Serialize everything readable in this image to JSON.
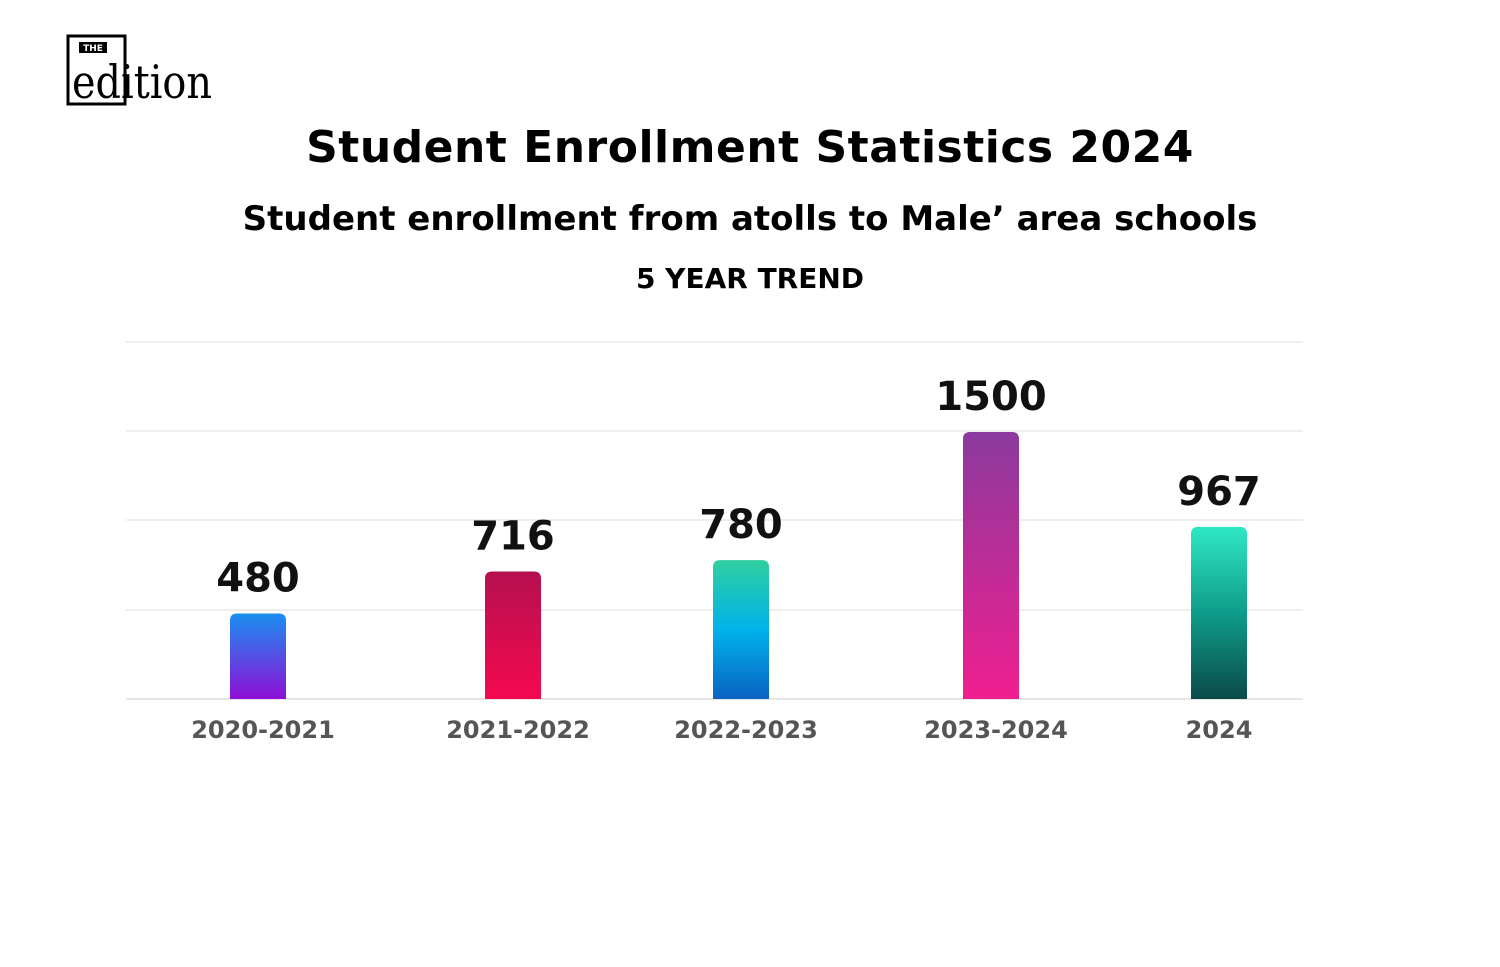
{
  "logo": {
    "small_text": "THE",
    "main_text": "edition"
  },
  "header": {
    "title": "Student Enrollment Statistics 2024",
    "subtitle": "Student enrollment from atolls to Male’ area schools",
    "trend_label": "5 YEAR TREND"
  },
  "chart_data": {
    "type": "bar",
    "categories": [
      "2020-2021",
      "2021-2022",
      "2022-2023",
      "2023-2024",
      "2024"
    ],
    "values": [
      480,
      716,
      780,
      1500,
      967
    ],
    "title": "Student Enrollment Statistics 2024",
    "xlabel": "",
    "ylabel": "",
    "grid": true,
    "bar_gradients": [
      [
        "#1a8ff0",
        "#8e0fd6"
      ],
      [
        "#b5104f",
        "#f4094f"
      ],
      [
        "#2fcf9f",
        "#00b3ea",
        "#0a62c2"
      ],
      [
        "#8b3a9e",
        "#f01f8f"
      ],
      [
        "#2fe8c5",
        "#0f9c8a",
        "#0b4a4a"
      ]
    ],
    "grid_color": "#dddddd",
    "value_label_color": "#111111",
    "category_label_color": "#555555"
  }
}
